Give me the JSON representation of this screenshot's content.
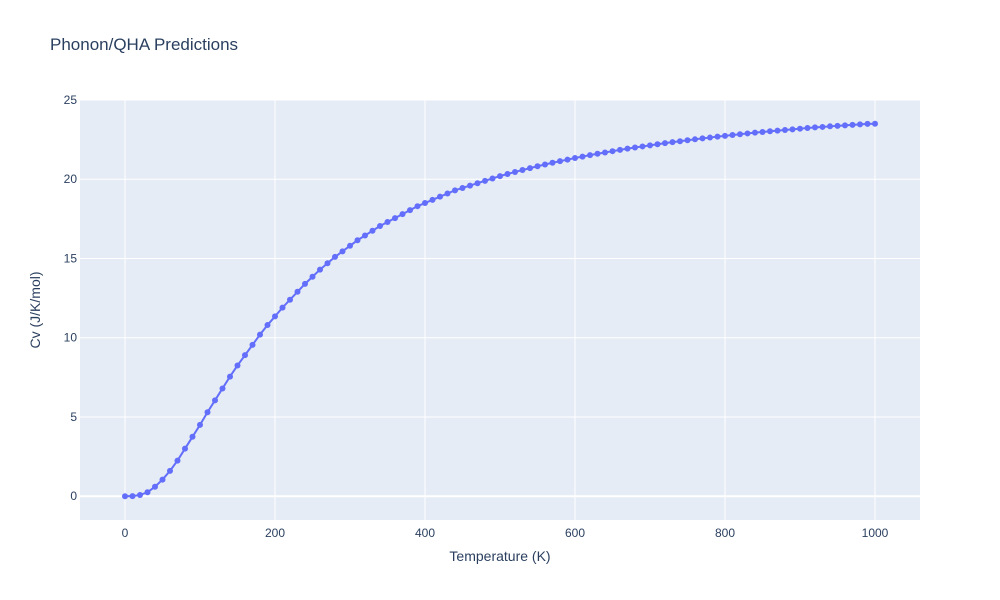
{
  "chart_data": {
    "type": "line",
    "title": "Phonon/QHA Predictions",
    "xlabel": "Temperature (K)",
    "ylabel": "Cv (J/K/mol)",
    "xlim": [
      -60,
      1060
    ],
    "ylim": [
      -1.5,
      25
    ],
    "xticks": [
      0,
      200,
      400,
      600,
      800,
      1000
    ],
    "yticks": [
      0,
      5,
      10,
      15,
      20,
      25
    ],
    "grid": true,
    "legend": "none",
    "colors": {
      "plot_bg": "#e5ecf6",
      "grid": "#ffffff",
      "series": "#636efa",
      "text": "#2a3f5f"
    },
    "series": [
      {
        "mode": "lines+markers",
        "x": [
          0,
          10,
          20,
          30,
          40,
          50,
          60,
          70,
          80,
          90,
          100,
          110,
          120,
          130,
          140,
          150,
          160,
          170,
          180,
          190,
          200,
          210,
          220,
          230,
          240,
          250,
          260,
          270,
          280,
          290,
          300,
          310,
          320,
          330,
          340,
          350,
          360,
          370,
          380,
          390,
          400,
          410,
          420,
          430,
          440,
          450,
          460,
          470,
          480,
          490,
          500,
          510,
          520,
          530,
          540,
          550,
          560,
          570,
          580,
          590,
          600,
          610,
          620,
          630,
          640,
          650,
          660,
          670,
          680,
          690,
          700,
          710,
          720,
          730,
          740,
          750,
          760,
          770,
          780,
          790,
          800,
          810,
          820,
          830,
          840,
          850,
          860,
          870,
          880,
          890,
          900,
          910,
          920,
          930,
          940,
          950,
          960,
          970,
          980,
          990,
          1000
        ],
        "y": [
          0,
          0.01,
          0.08,
          0.25,
          0.6,
          1.05,
          1.6,
          2.25,
          3.0,
          3.75,
          4.5,
          5.3,
          6.05,
          6.8,
          7.55,
          8.25,
          8.9,
          9.55,
          10.2,
          10.8,
          11.35,
          11.9,
          12.4,
          12.9,
          13.4,
          13.85,
          14.3,
          14.7,
          15.1,
          15.45,
          15.8,
          16.15,
          16.45,
          16.75,
          17.05,
          17.3,
          17.55,
          17.8,
          18.05,
          18.3,
          18.5,
          18.7,
          18.9,
          19.1,
          19.3,
          19.45,
          19.6,
          19.75,
          19.9,
          20.05,
          20.2,
          20.33,
          20.46,
          20.58,
          20.7,
          20.82,
          20.93,
          21.04,
          21.14,
          21.24,
          21.34,
          21.43,
          21.52,
          21.61,
          21.69,
          21.77,
          21.85,
          21.93,
          22.0,
          22.07,
          22.14,
          22.21,
          22.28,
          22.34,
          22.4,
          22.46,
          22.52,
          22.58,
          22.63,
          22.69,
          22.74,
          22.79,
          22.84,
          22.89,
          22.94,
          22.98,
          23.03,
          23.07,
          23.11,
          23.15,
          23.19,
          23.23,
          23.27,
          23.3,
          23.34,
          23.37,
          23.4,
          23.43,
          23.46,
          23.49,
          23.5
        ]
      }
    ]
  }
}
